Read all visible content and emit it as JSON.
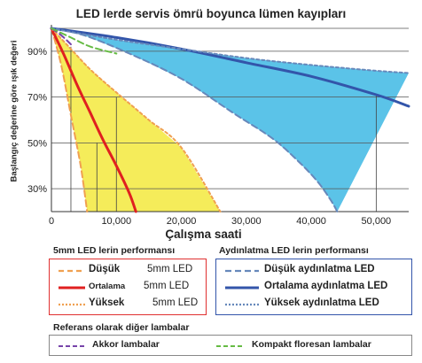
{
  "chart_data": {
    "type": "line",
    "title": "LED lerde servis ömrü boyunca lümen kayıpları",
    "xlabel": "Çalışma saati",
    "ylabel": "Başlangıç değerine göre ışık değeri",
    "xlim": [
      0,
      55000
    ],
    "ylim": [
      20,
      100
    ],
    "x_ticks": [
      0,
      10000,
      20000,
      30000,
      40000,
      50000
    ],
    "x_tick_labels": [
      "0",
      "10,000",
      "20,000",
      "30,000",
      "40,000",
      "50,000"
    ],
    "y_ticks": [
      30,
      50,
      70,
      90
    ],
    "y_tick_labels": [
      "30%",
      "50%",
      "70%",
      "90%"
    ],
    "grid": "horizontal",
    "bands": [
      {
        "group": "5mm",
        "color": "#f5ec5a",
        "upper": [
          [
            0,
            100
          ],
          [
            3000,
            91
          ],
          [
            6000,
            82
          ],
          [
            10000,
            72
          ],
          [
            15000,
            60
          ],
          [
            20000,
            48
          ],
          [
            26000,
            20
          ]
        ],
        "lower": [
          [
            0,
            100
          ],
          [
            1500,
            84
          ],
          [
            3000,
            62
          ],
          [
            4500,
            40
          ],
          [
            5500,
            20
          ]
        ]
      },
      {
        "group": "Aydınlatma",
        "color": "#5bc3e8",
        "upper": [
          [
            0,
            100
          ],
          [
            10000,
            95
          ],
          [
            20000,
            91
          ],
          [
            30000,
            87
          ],
          [
            40000,
            84
          ],
          [
            50000,
            81.5
          ],
          [
            55000,
            80.5
          ]
        ],
        "lower": [
          [
            0,
            100
          ],
          [
            5000,
            97
          ],
          [
            12000,
            89
          ],
          [
            20000,
            78
          ],
          [
            28000,
            63
          ],
          [
            34000,
            52
          ],
          [
            38000,
            42
          ],
          [
            41000,
            33
          ],
          [
            43000,
            25
          ],
          [
            44000,
            20
          ]
        ]
      }
    ],
    "series": [
      {
        "name": "Düşük",
        "group": "5mm",
        "color": "#f0a050",
        "dash": "dashed",
        "points": [
          [
            0,
            100
          ],
          [
            1500,
            84
          ],
          [
            3000,
            62
          ],
          [
            4500,
            40
          ],
          [
            5500,
            20
          ]
        ]
      },
      {
        "name": "Ortalama",
        "group": "5mm",
        "color": "#e02020",
        "dash": "solid",
        "points": [
          [
            0,
            100
          ],
          [
            2000,
            88
          ],
          [
            4000,
            75
          ],
          [
            6000,
            63
          ],
          [
            8000,
            51
          ],
          [
            10000,
            40
          ],
          [
            12000,
            28
          ],
          [
            13000,
            20
          ]
        ]
      },
      {
        "name": "Yüksek",
        "group": "5mm",
        "color": "#f0a050",
        "dash": "dashed",
        "points": [
          [
            0,
            100
          ],
          [
            3000,
            91
          ],
          [
            6000,
            82
          ],
          [
            10000,
            72
          ],
          [
            15000,
            60
          ],
          [
            20000,
            48
          ],
          [
            26000,
            20
          ]
        ]
      },
      {
        "name": "Düşük aydınlatma",
        "group": "Aydınlatma",
        "color": "#6688bb",
        "dash": "dashed",
        "points": [
          [
            0,
            100
          ],
          [
            5000,
            97
          ],
          [
            12000,
            89
          ],
          [
            20000,
            78
          ],
          [
            28000,
            63
          ],
          [
            34000,
            52
          ],
          [
            38000,
            42
          ],
          [
            41000,
            33
          ],
          [
            43000,
            25
          ],
          [
            44000,
            20
          ]
        ]
      },
      {
        "name": "Ortalama aydınlatma",
        "group": "Aydınlatma",
        "color": "#3355aa",
        "dash": "solid",
        "points": [
          [
            0,
            100
          ],
          [
            10000,
            96
          ],
          [
            20000,
            91
          ],
          [
            30000,
            85
          ],
          [
            40000,
            79
          ],
          [
            50000,
            71
          ],
          [
            55000,
            66
          ]
        ]
      },
      {
        "name": "Yüksek aydınlatma",
        "group": "Aydınlatma",
        "color": "#6688bb",
        "dash": "dashed",
        "points": [
          [
            0,
            100
          ],
          [
            10000,
            95
          ],
          [
            20000,
            91
          ],
          [
            30000,
            87
          ],
          [
            40000,
            84
          ],
          [
            50000,
            81.5
          ],
          [
            55000,
            80.5
          ]
        ]
      },
      {
        "name": "Akkor lambalar",
        "group": "Referans",
        "color": "#7744aa",
        "dash": "dashed",
        "points": [
          [
            0,
            100
          ],
          [
            1500,
            97
          ],
          [
            3000,
            93
          ]
        ]
      },
      {
        "name": "Kompakt floresan lambalar",
        "group": "Referans",
        "color": "#66bb44",
        "dash": "dashed",
        "points": [
          [
            0,
            100
          ],
          [
            3000,
            96
          ],
          [
            6000,
            92
          ],
          [
            10000,
            89
          ]
        ]
      }
    ],
    "reference_lines": [
      {
        "x": 3000,
        "y_from": 20,
        "y_to": 92
      },
      {
        "x": 7000,
        "y_from": 20,
        "y_to": 50
      },
      {
        "x": 10000,
        "y_from": 20,
        "y_to": 70
      },
      {
        "x": 50000,
        "y_from": 20,
        "y_to": 71
      }
    ]
  },
  "legend": {
    "led5mm": {
      "heading": "5mm LED lerin performansı",
      "rows": [
        {
          "name": "Düşük",
          "suffix": "5mm LED",
          "color": "#f0a050",
          "dash": "dashed"
        },
        {
          "name": "Ortalama",
          "suffix": "5mm LED",
          "color": "#e02020",
          "dash": "solid"
        },
        {
          "name": "Yüksek",
          "suffix": "5mm LED",
          "color": "#f0a050",
          "dash": "dashed"
        }
      ],
      "border": "#e03030"
    },
    "lighting": {
      "heading": "Aydınlatma LED lerin performansı",
      "rows": [
        {
          "name": "Düşük aydınlatma LED",
          "color": "#6688bb",
          "dash": "dashed"
        },
        {
          "name": "Ortalama aydınlatma LED",
          "color": "#3355aa",
          "dash": "solid"
        },
        {
          "name": "Yüksek aydınlatma LED",
          "color": "#6688bb",
          "dash": "dashed"
        }
      ],
      "border": "#3355aa"
    },
    "reference": {
      "heading": "Referans olarak diğer lambalar",
      "rows": [
        {
          "name": "Akkor lambalar",
          "color": "#7744aa",
          "dash": "dashed"
        },
        {
          "name": "Kompakt floresan lambalar",
          "color": "#66bb44",
          "dash": "dashed"
        }
      ],
      "border": "#888888"
    }
  }
}
